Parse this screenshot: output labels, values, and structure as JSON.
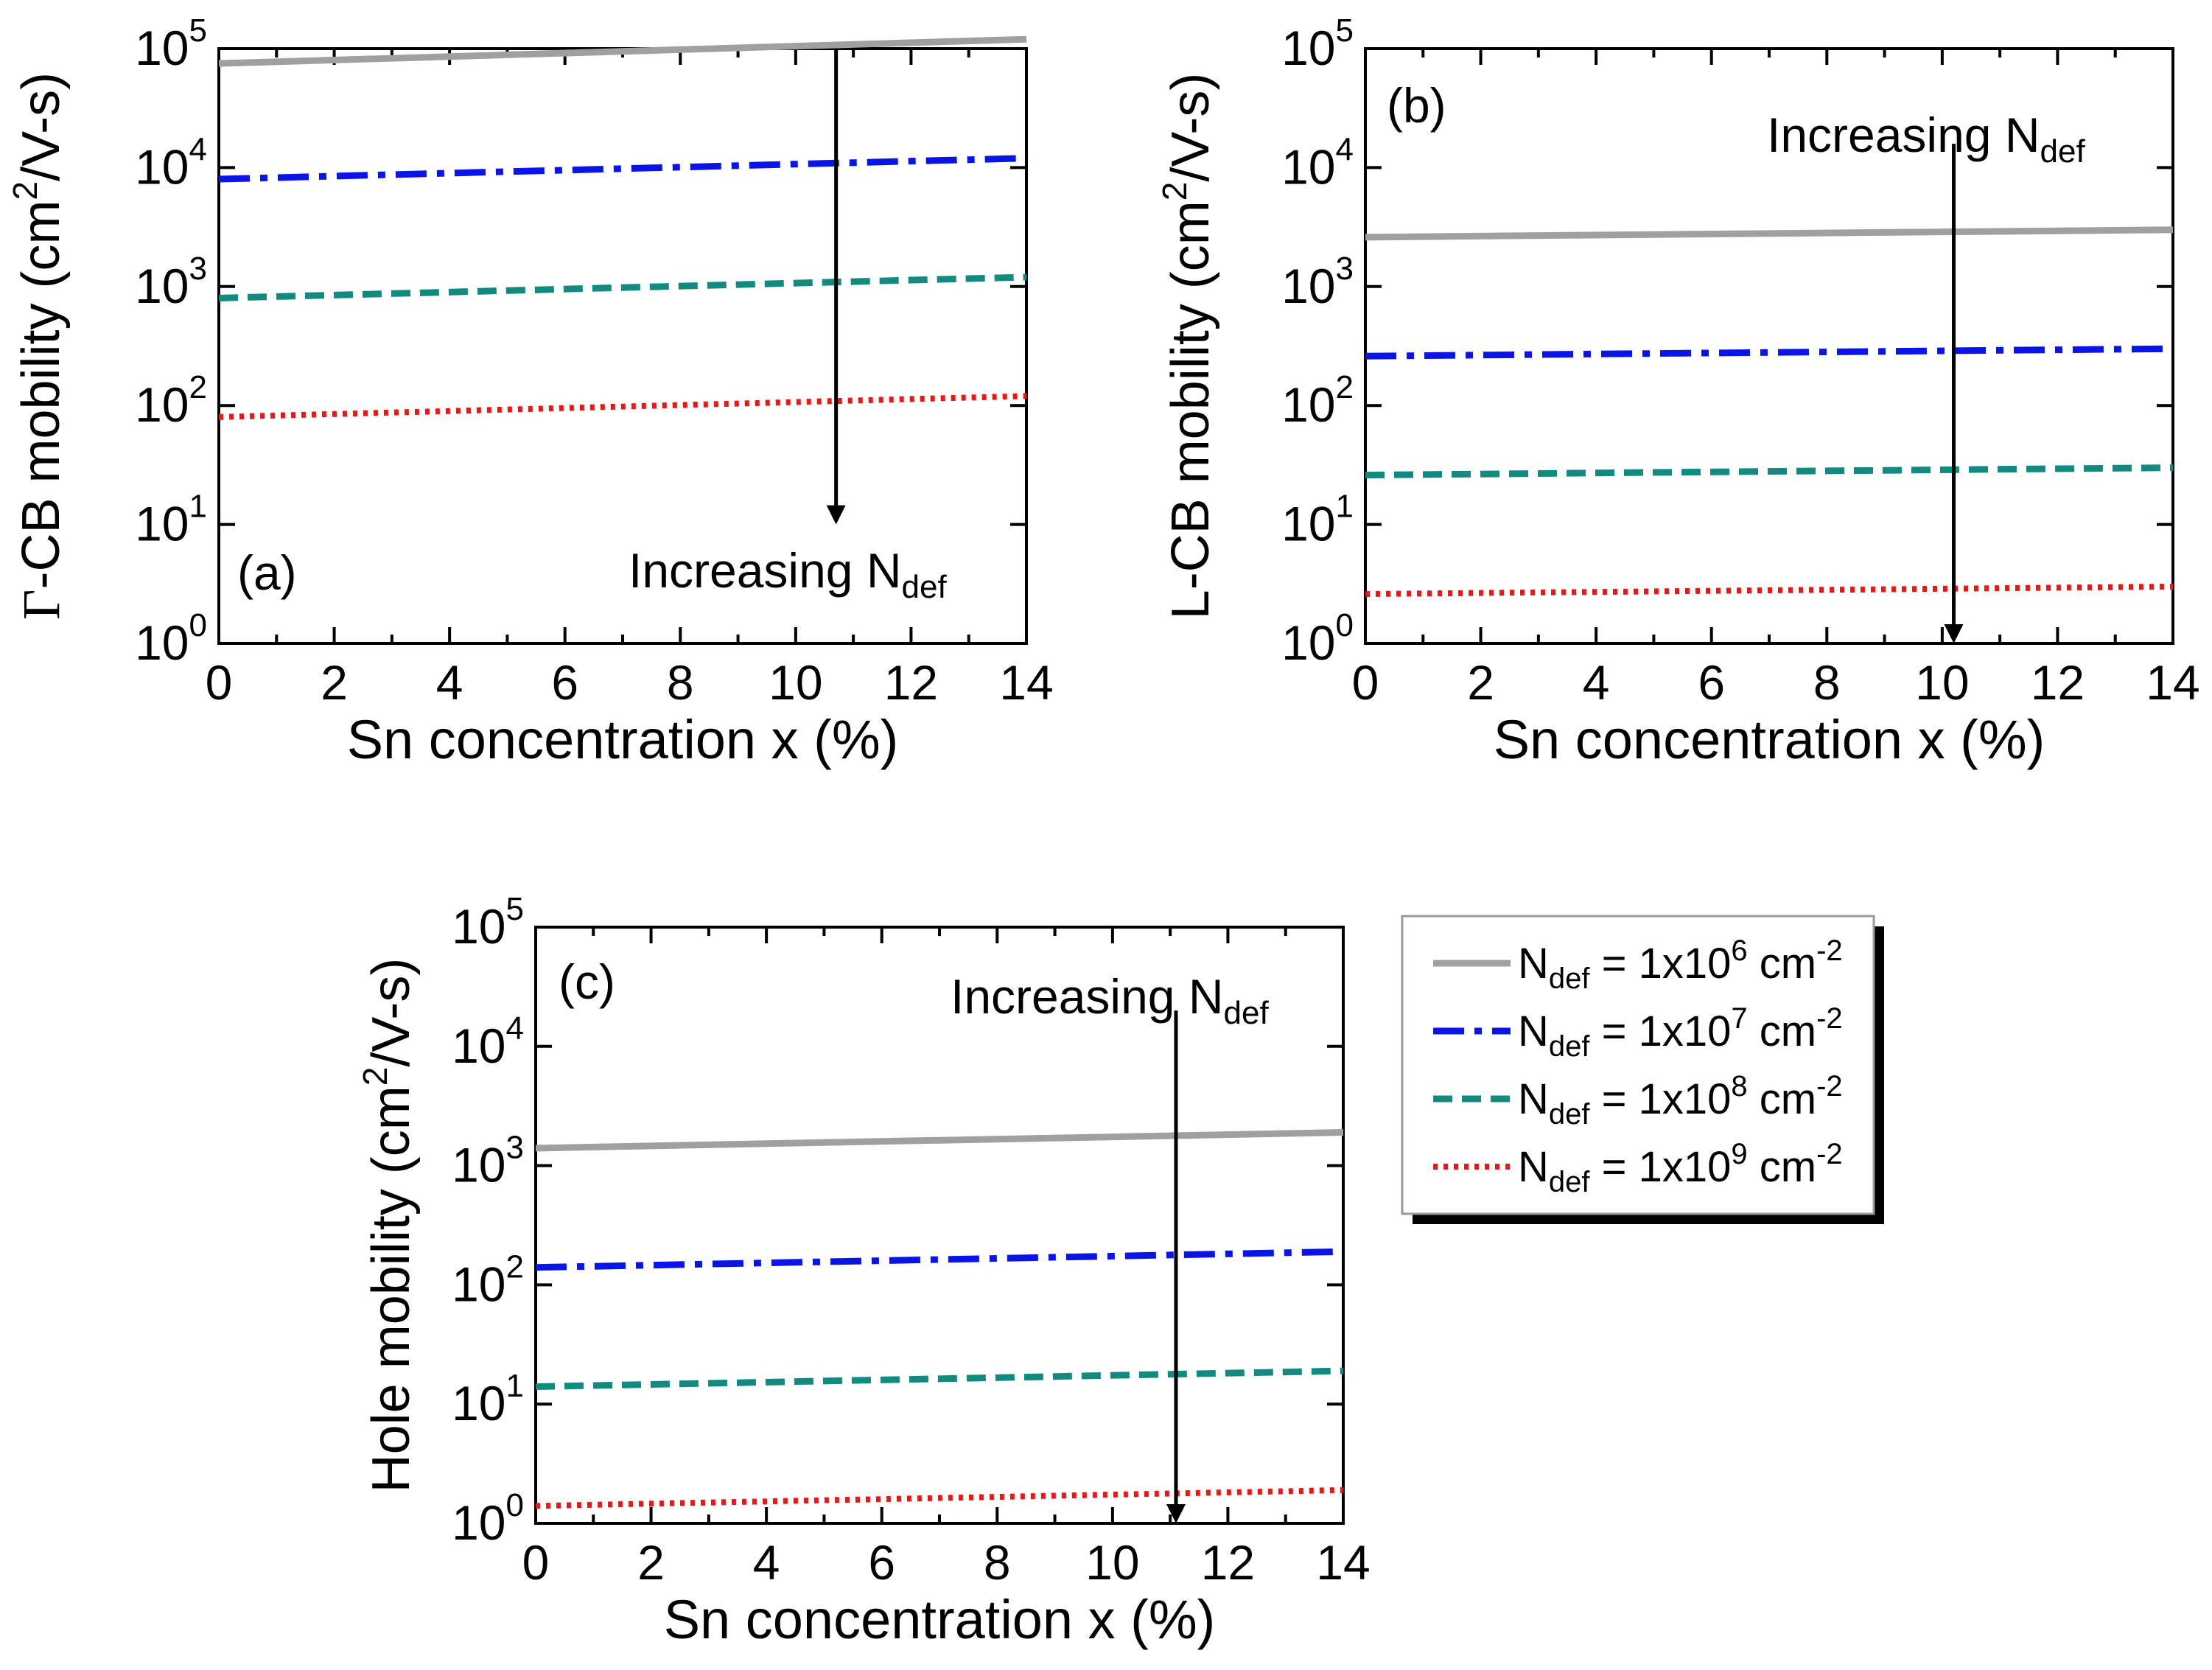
{
  "chart_data": [
    {
      "id": "a",
      "type": "line",
      "panel_label": "(a)",
      "ylabel": {
        "prefix": "Γ",
        "main": "-CB mobility (cm",
        "sup": "2",
        "tail": "/V-s)"
      },
      "xlabel": "Sn concentration x (%)",
      "xlim": [
        0,
        14
      ],
      "ylim_log10": [
        0,
        5
      ],
      "xticks": [
        "0",
        "2",
        "4",
        "6",
        "8",
        "10",
        "12",
        "14"
      ],
      "yticks": [
        "0",
        "1",
        "2",
        "3",
        "4",
        "5"
      ],
      "ytick_base": "10",
      "annotation": {
        "text": "Increasing N",
        "sub": "def",
        "arrow_x": 10.7,
        "arrow_from": 5.0,
        "arrow_to": 1.0
      },
      "x": [
        0,
        14
      ],
      "series": [
        {
          "name": "Ndef = 1x10^6 cm^-2",
          "values": [
            75000,
            120000
          ]
        },
        {
          "name": "Ndef = 1x10^7 cm^-2",
          "values": [
            8000,
            12000
          ]
        },
        {
          "name": "Ndef = 1x10^8 cm^-2",
          "values": [
            800,
            1200
          ]
        },
        {
          "name": "Ndef = 1x10^9 cm^-2",
          "values": [
            80,
            120
          ]
        }
      ]
    },
    {
      "id": "b",
      "type": "line",
      "panel_label": "(b)",
      "ylabel": {
        "prefix": "",
        "main": "L-CB mobility (cm",
        "sup": "2",
        "tail": "/V-s)"
      },
      "xlabel": "Sn concentration x (%)",
      "xlim": [
        0,
        14
      ],
      "ylim_log10": [
        0,
        5
      ],
      "xticks": [
        "0",
        "2",
        "4",
        "6",
        "8",
        "10",
        "12",
        "14"
      ],
      "yticks": [
        "0",
        "1",
        "2",
        "3",
        "4",
        "5"
      ],
      "ytick_base": "10",
      "annotation": {
        "text": "Increasing N",
        "sub": "def",
        "arrow_x": 10.2,
        "arrow_from": 4.2,
        "arrow_to": 0.0
      },
      "x": [
        0,
        14
      ],
      "series": [
        {
          "name": "Ndef = 1x10^6 cm^-2",
          "values": [
            2600,
            3000
          ]
        },
        {
          "name": "Ndef = 1x10^7 cm^-2",
          "values": [
            260,
            300
          ]
        },
        {
          "name": "Ndef = 1x10^8 cm^-2",
          "values": [
            26,
            30
          ]
        },
        {
          "name": "Ndef = 1x10^9 cm^-2",
          "values": [
            2.6,
            3.0
          ]
        }
      ]
    },
    {
      "id": "c",
      "type": "line",
      "panel_label": "(c)",
      "ylabel": {
        "prefix": "",
        "main": "Hole mobility (cm",
        "sup": "2",
        "tail": "/V-s)"
      },
      "xlabel": "Sn concentration x (%)",
      "xlim": [
        0,
        14
      ],
      "ylim_log10": [
        0,
        5
      ],
      "xticks": [
        "0",
        "2",
        "4",
        "6",
        "8",
        "10",
        "12",
        "14"
      ],
      "yticks": [
        "0",
        "1",
        "2",
        "3",
        "4",
        "5"
      ],
      "ytick_base": "10",
      "annotation": {
        "text": "Increasing N",
        "sub": "def",
        "arrow_x": 11.1,
        "arrow_from": 4.3,
        "arrow_to": 0.0
      },
      "x": [
        0,
        14
      ],
      "series": [
        {
          "name": "Ndef = 1x10^6 cm^-2",
          "values": [
            1400,
            1900
          ]
        },
        {
          "name": "Ndef = 1x10^7 cm^-2",
          "values": [
            140,
            190
          ]
        },
        {
          "name": "Ndef = 1x10^8 cm^-2",
          "values": [
            14,
            19
          ]
        },
        {
          "name": "Ndef = 1x10^9 cm^-2",
          "values": [
            1.4,
            1.9
          ]
        }
      ]
    }
  ],
  "legend": {
    "placement": "right of panel (c)",
    "entries": [
      {
        "pre": "N",
        "sub": "def",
        "mid": " = 1x10",
        "exp": "6",
        "unit": " cm",
        "unit_exp": "-2",
        "color": "#a0a0a0",
        "style": "solid"
      },
      {
        "pre": "N",
        "sub": "def",
        "mid": " = 1x10",
        "exp": "7",
        "unit": " cm",
        "unit_exp": "-2",
        "color": "#0a14e6",
        "style": "dashdot"
      },
      {
        "pre": "N",
        "sub": "def",
        "mid": " = 1x10",
        "exp": "8",
        "unit": " cm",
        "unit_exp": "-2",
        "color": "#138a80",
        "style": "dash"
      },
      {
        "pre": "N",
        "sub": "def",
        "mid": " = 1x10",
        "exp": "9",
        "unit": " cm",
        "unit_exp": "-2",
        "color": "#e81818",
        "style": "dot"
      }
    ]
  }
}
